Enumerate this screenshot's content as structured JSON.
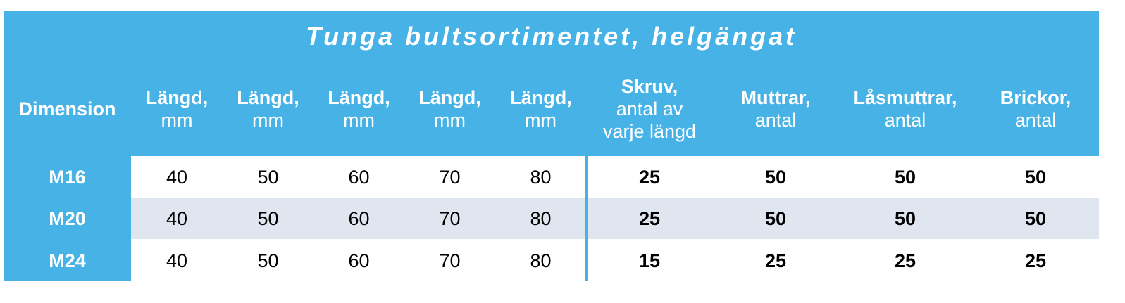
{
  "title": "Tunga bultsortimentet, helgängat",
  "table": {
    "header": [
      [
        "Dimension"
      ],
      [
        "Längd,",
        "mm"
      ],
      [
        "Längd,",
        "mm"
      ],
      [
        "Längd,",
        "mm"
      ],
      [
        "Längd,",
        "mm"
      ],
      [
        "Längd,",
        "mm"
      ],
      [
        "Skruv,",
        "antal av",
        "varje längd"
      ],
      [
        "Muttrar,",
        "antal"
      ],
      [
        "Låsmuttrar,",
        "antal"
      ],
      [
        "Brickor,",
        "antal"
      ]
    ],
    "rows": [
      [
        "M16",
        40,
        50,
        60,
        70,
        80,
        25,
        50,
        50,
        50
      ],
      [
        "M20",
        40,
        50,
        60,
        70,
        80,
        25,
        50,
        50,
        50
      ],
      [
        "M24",
        40,
        50,
        60,
        70,
        80,
        15,
        25,
        25,
        25
      ]
    ]
  }
}
